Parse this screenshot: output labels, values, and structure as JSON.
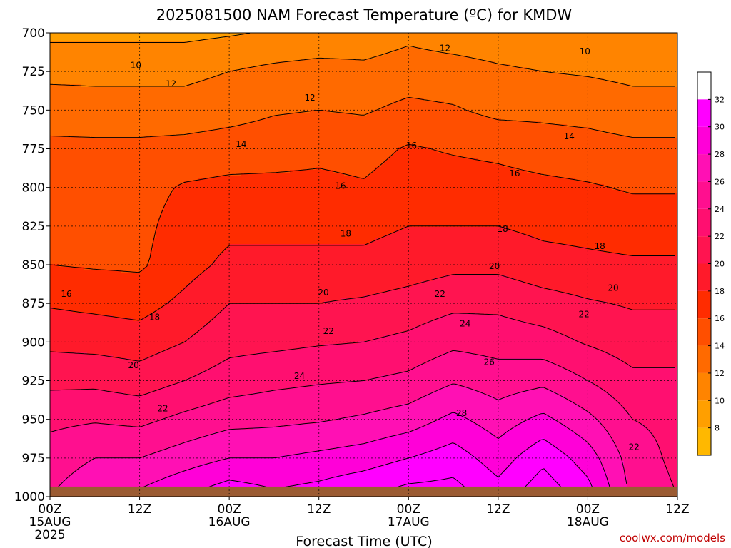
{
  "colors": {
    "ground": "#9b5b32",
    "bands": [
      "#ffb800",
      "#ff9f00",
      "#ff8400",
      "#ff6a00",
      "#ff4f00",
      "#ff2c00",
      "#ff1a2a",
      "#ff1450",
      "#ff0f70",
      "#ff0f8f",
      "#ff10b4",
      "#ff00d8",
      "#ff00ff"
    ],
    "credit": "#c00000"
  },
  "chart_data": {
    "type": "heatmap",
    "title": "2025081500 NAM Forecast Temperature (ºC) for KMDW",
    "xlabel": "Forecast Time (UTC)",
    "credit": "coolwx.com/models",
    "x_ticks": [
      {
        "hours": 0,
        "label": "00Z",
        "date": "15AUG",
        "year": "2025"
      },
      {
        "hours": 12,
        "label": "12Z",
        "date": "",
        "year": ""
      },
      {
        "hours": 24,
        "label": "00Z",
        "date": "16AUG",
        "year": ""
      },
      {
        "hours": 36,
        "label": "12Z",
        "date": "",
        "year": ""
      },
      {
        "hours": 48,
        "label": "00Z",
        "date": "17AUG",
        "year": ""
      },
      {
        "hours": 60,
        "label": "12Z",
        "date": "",
        "year": ""
      },
      {
        "hours": 72,
        "label": "00Z",
        "date": "18AUG",
        "year": ""
      },
      {
        "hours": 84,
        "label": "12Z",
        "date": "",
        "year": ""
      }
    ],
    "xlim": [
      0,
      84
    ],
    "y_ticks": [
      700,
      725,
      750,
      775,
      800,
      825,
      850,
      875,
      900,
      925,
      950,
      975,
      1000
    ],
    "ylim": [
      700,
      1000
    ],
    "y_scale": "linear pressure (hPa), inverted",
    "grid": true,
    "colorbar": {
      "ticks": [
        8,
        10,
        12,
        14,
        16,
        18,
        20,
        22,
        24,
        26,
        28,
        30,
        32
      ],
      "range": [
        6,
        34
      ],
      "placement": "right"
    },
    "times": [
      0,
      6,
      12,
      18,
      24,
      30,
      36,
      42,
      48,
      54,
      60,
      66,
      72,
      78,
      84
    ],
    "temperature_profiles": [
      {
        "hours": 0,
        "values": [
          9.5,
          11.5,
          13,
          14.5,
          15.5,
          15.8,
          16,
          17.8,
          19.5,
          21.5,
          23.5,
          25,
          26
        ]
      },
      {
        "hours": 6,
        "values": [
          9.5,
          11.5,
          12.8,
          14.5,
          15.5,
          15.8,
          15.8,
          17.5,
          19.3,
          21.5,
          23.8,
          26,
          27.5
        ]
      },
      {
        "hours": 12,
        "values": [
          9.5,
          11.5,
          12.8,
          14.5,
          15.3,
          15.5,
          15.7,
          17.2,
          19,
          21,
          23.5,
          26,
          28.5
        ]
      },
      {
        "hours": 18,
        "values": [
          9.5,
          11.5,
          12.8,
          14.7,
          16.2,
          16.8,
          17.2,
          18.5,
          20,
          22,
          24.5,
          27,
          30
        ]
      },
      {
        "hours": 24,
        "values": [
          9.8,
          12,
          13.2,
          15,
          16.5,
          17.5,
          18.5,
          20,
          21.3,
          23,
          25.3,
          28,
          31.5
        ]
      },
      {
        "hours": 30,
        "values": [
          10.2,
          12.5,
          13.8,
          15.2,
          16.5,
          17.5,
          18.5,
          20,
          21.5,
          23.5,
          25.5,
          28,
          30.5
        ]
      },
      {
        "hours": 36,
        "values": [
          10.5,
          12.8,
          14,
          15.5,
          16.5,
          17.5,
          18.5,
          20,
          21.8,
          23.8,
          25.8,
          28.5,
          31
        ]
      },
      {
        "hours": 42,
        "values": [
          10.8,
          12.5,
          13.8,
          15.3,
          16.2,
          17.5,
          18.5,
          20.3,
          22,
          24,
          26.3,
          29,
          32
        ]
      },
      {
        "hours": 48,
        "values": [
          11.5,
          13,
          14.5,
          16.2,
          17,
          18,
          19,
          20.8,
          22.5,
          24.5,
          27,
          30,
          33
        ]
      },
      {
        "hours": 54,
        "values": [
          11,
          12.8,
          14.2,
          15.8,
          17,
          18,
          19.5,
          21.5,
          23.5,
          25.8,
          28.5,
          31,
          33
        ]
      },
      {
        "hours": 60,
        "values": [
          10.8,
          12.3,
          13.5,
          15.5,
          16.8,
          18,
          19.5,
          21.5,
          23.2,
          25,
          27,
          29,
          31
        ]
      },
      {
        "hours": 66,
        "values": [
          10.5,
          12,
          13.5,
          15,
          16.5,
          17.5,
          18.8,
          20.8,
          22.8,
          25.5,
          28.5,
          31.5,
          33.5
        ]
      },
      {
        "hours": 72,
        "values": [
          10,
          11.8,
          13.3,
          14.8,
          16.2,
          17.3,
          18.5,
          20.2,
          21.8,
          24,
          26.5,
          29,
          31
        ]
      },
      {
        "hours": 78,
        "values": [
          10,
          11.5,
          12.8,
          14.5,
          15.8,
          17,
          18.3,
          19.8,
          21,
          22.5,
          24,
          25,
          25.5
        ]
      },
      {
        "hours": 84,
        "values": [
          10,
          11.5,
          12.8,
          14.5,
          15.8,
          17,
          18.3,
          19.8,
          21,
          22.5,
          23.5,
          23.5,
          24
        ]
      }
    ],
    "contour_labels": [
      {
        "value": "10",
        "hours": 11.5,
        "pressure": 721
      },
      {
        "value": "12",
        "hours": 16.2,
        "pressure": 733
      },
      {
        "value": "12",
        "hours": 34.8,
        "pressure": 742
      },
      {
        "value": "12",
        "hours": 52.9,
        "pressure": 710
      },
      {
        "value": "10",
        "hours": 71.6,
        "pressure": 712
      },
      {
        "value": "14",
        "hours": 25.6,
        "pressure": 772
      },
      {
        "value": "16",
        "hours": 48.4,
        "pressure": 773
      },
      {
        "value": "14",
        "hours": 69.5,
        "pressure": 767
      },
      {
        "value": "16",
        "hours": 62.2,
        "pressure": 791
      },
      {
        "value": "16",
        "hours": 38.9,
        "pressure": 799
      },
      {
        "value": "18",
        "hours": 39.6,
        "pressure": 830
      },
      {
        "value": "18",
        "hours": 60.6,
        "pressure": 827
      },
      {
        "value": "18",
        "hours": 73.6,
        "pressure": 838
      },
      {
        "value": "20",
        "hours": 59.5,
        "pressure": 851
      },
      {
        "value": "20",
        "hours": 36.6,
        "pressure": 868
      },
      {
        "value": "20",
        "hours": 75.4,
        "pressure": 865
      },
      {
        "value": "16",
        "hours": 2.2,
        "pressure": 869
      },
      {
        "value": "22",
        "hours": 52.2,
        "pressure": 869
      },
      {
        "value": "22",
        "hours": 71.5,
        "pressure": 882
      },
      {
        "value": "18",
        "hours": 14,
        "pressure": 884
      },
      {
        "value": "24",
        "hours": 55.6,
        "pressure": 888
      },
      {
        "value": "22",
        "hours": 37.3,
        "pressure": 893
      },
      {
        "value": "26",
        "hours": 58.8,
        "pressure": 913
      },
      {
        "value": "20",
        "hours": 11.2,
        "pressure": 915
      },
      {
        "value": "24",
        "hours": 33.4,
        "pressure": 922
      },
      {
        "value": "28",
        "hours": 55.1,
        "pressure": 946
      },
      {
        "value": "22",
        "hours": 15.1,
        "pressure": 943
      },
      {
        "value": "22",
        "hours": 78.2,
        "pressure": 968
      }
    ]
  }
}
